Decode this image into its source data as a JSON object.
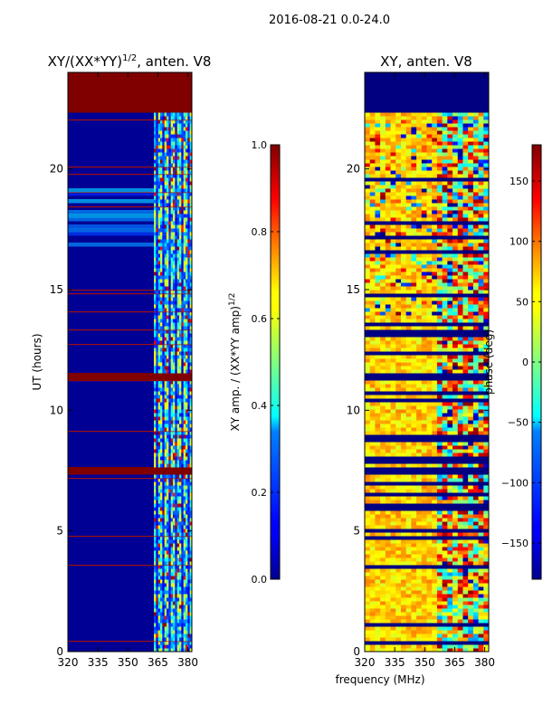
{
  "suptitle": "2016-08-21 0.0-24.0",
  "colors": {
    "jet_dark_red": "#800000",
    "jet_dark_blue": "#00008f",
    "gap_red": "#a01010"
  },
  "chart_data": [
    {
      "type": "heatmap",
      "name": "left",
      "title": "XY/(XX*YY)",
      "title_exponent": "1/2",
      "title_suffix": ", anten. V8",
      "xlabel": "",
      "ylabel": "UT (hours)",
      "xlim": [
        320,
        382
      ],
      "ylim": [
        0,
        24
      ],
      "xticks": [
        "320",
        "335",
        "350",
        "365",
        "380"
      ],
      "xtick_values": [
        320,
        335,
        350,
        365,
        380
      ],
      "yticks": [
        "0",
        "5",
        "10",
        "15",
        "20"
      ],
      "ytick_values": [
        0,
        5,
        10,
        15,
        20
      ],
      "colorbar": {
        "label": "XY amp. / (XX*YY amp)",
        "label_exponent": "1/2",
        "range": [
          0.0,
          1.0
        ],
        "ticks": [
          "0.0",
          "0.2",
          "0.4",
          "0.6",
          "0.8",
          "1.0"
        ],
        "tick_values": [
          0.0,
          0.2,
          0.4,
          0.6,
          0.8,
          1.0
        ]
      },
      "background_value": 0.02,
      "active_band_mhz": [
        363,
        382
      ],
      "active_value_range": [
        0.15,
        0.65
      ],
      "flagged_blocks_hours": [
        [
          22.4,
          24.0
        ],
        [
          7.4,
          7.6
        ],
        [
          11.2,
          11.5
        ]
      ],
      "flag_value": 1.0,
      "bright_band_hours": [
        [
          16.5,
          19.2
        ]
      ]
    },
    {
      "type": "heatmap",
      "name": "right",
      "title": "XY, anten. V8",
      "xlabel": "frequency (MHz)",
      "ylabel": "",
      "xlim": [
        320,
        382
      ],
      "ylim": [
        0,
        24
      ],
      "xticks": [
        "320",
        "335",
        "350",
        "365",
        "380"
      ],
      "xtick_values": [
        320,
        335,
        350,
        365,
        380
      ],
      "yticks": [
        "0",
        "5",
        "10",
        "15",
        "20"
      ],
      "ytick_values": [
        0,
        5,
        10,
        15,
        20
      ],
      "colorbar": {
        "label": "phase (deg)",
        "range": [
          -180,
          180
        ],
        "ticks": [
          "−150",
          "−100",
          "−50",
          "0",
          "50",
          "100",
          "150"
        ],
        "tick_values": [
          -150,
          -100,
          -50,
          0,
          50,
          100,
          150
        ]
      },
      "typical_phase_deg": 60,
      "flagged_blocks_hours": [
        [
          22.4,
          24.0
        ],
        [
          7.4,
          7.6
        ],
        [
          11.2,
          11.5
        ]
      ],
      "flag_value": -180
    }
  ]
}
